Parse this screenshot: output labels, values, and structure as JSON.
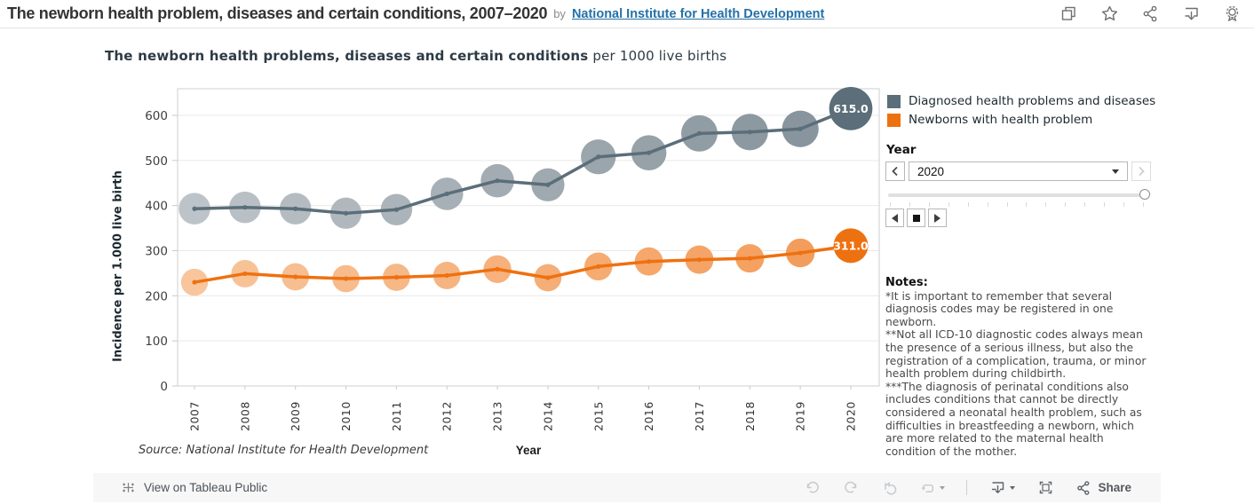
{
  "header": {
    "title": "The newborn health problem, diseases and certain conditions, 2007–2020",
    "by": "by",
    "author": "National Institute for Health Development"
  },
  "chart": {
    "title_bold": "The newborn health problems, diseases and certain conditions",
    "title_rest": " per 1000 live births",
    "source": "Source: National Institute for Health Development"
  },
  "chart_data": {
    "type": "line",
    "title": "The newborn health problems, diseases and certain conditions per 1000 live births",
    "xlabel": "Year",
    "ylabel": "Incidence  per 1.000 live birth",
    "categories": [
      "2007",
      "2008",
      "2009",
      "2010",
      "2011",
      "2012",
      "2013",
      "2014",
      "2015",
      "2016",
      "2017",
      "2018",
      "2019",
      "2020"
    ],
    "yticks": [
      0,
      100,
      200,
      300,
      400,
      500,
      600
    ],
    "ylim": [
      0,
      660
    ],
    "grid": true,
    "legend_position": "right",
    "series": [
      {
        "name": "Diagnosed health problems and diseases",
        "color": "#5b6e79",
        "halo_start": "#bdc4c9",
        "halo_end": "#84919a",
        "values": [
          393,
          396,
          393,
          383,
          391,
          426,
          455,
          446,
          508,
          517,
          560,
          563,
          570,
          615
        ],
        "last_label": "615.0"
      },
      {
        "name": "Newborns with health problem",
        "color": "#ee7111",
        "halo_start": "#f8c59c",
        "halo_end": "#f39a57",
        "values": [
          230,
          249,
          242,
          238,
          241,
          245,
          259,
          240,
          265,
          276,
          280,
          283,
          295,
          311
        ],
        "last_label": "311.0"
      }
    ]
  },
  "year_control": {
    "label": "Year",
    "value": "2020"
  },
  "notes": {
    "heading": "Notes:",
    "lines": [
      "*It is important to remember that several diagnosis codes may be registered in one newborn.",
      "**Not all ICD-10 diagnostic codes always mean the presence of a serious illness, but also the registration of a complication, trauma, or minor health problem during childbirth.",
      "***The diagnosis of perinatal conditions also includes conditions that cannot be directly considered a neonatal health problem, such as difficulties in breastfeeding a newborn, which are more related to the maternal health condition of the mother."
    ]
  },
  "footer": {
    "view_on": "View on Tableau Public",
    "share": "Share"
  }
}
